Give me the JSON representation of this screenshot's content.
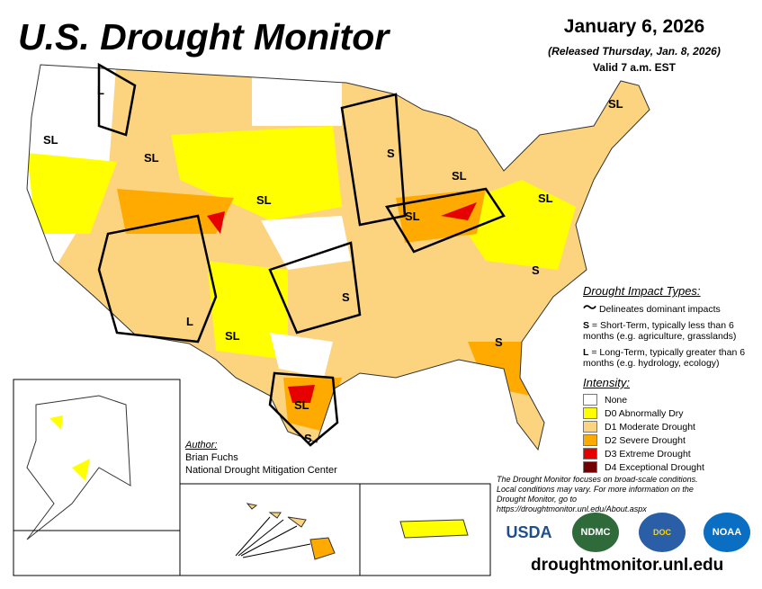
{
  "header": {
    "title": "U.S. Drought Monitor",
    "date": "January 6, 2026",
    "released": "(Released Thursday, Jan. 8, 2026)",
    "valid": "Valid 7 a.m. EST"
  },
  "map": {
    "labels": [
      "SL",
      "L",
      "SL",
      "SL",
      "S",
      "SL",
      "SL",
      "SL",
      "SL",
      "S",
      "L",
      "SL",
      "S",
      "S",
      "SL",
      "S",
      "SL"
    ]
  },
  "legend": {
    "impact_title": "Drought Impact Types:",
    "delineates": "Delineates dominant impacts",
    "short_term_key": "S",
    "short_term": " = Short-Term, typically less than 6 months (e.g. agriculture, grasslands)",
    "long_term_key": "L",
    "long_term": " = Long-Term, typically greater than 6 months (e.g. hydrology, ecology)",
    "intensity_title": "Intensity:",
    "categories": [
      {
        "label": "None",
        "color": "#FFFFFF"
      },
      {
        "label": "D0 Abnormally Dry",
        "color": "#FFFF00"
      },
      {
        "label": "D1 Moderate Drought",
        "color": "#FCD37F"
      },
      {
        "label": "D2 Severe Drought",
        "color": "#FFAA00"
      },
      {
        "label": "D3 Extreme Drought",
        "color": "#E60000"
      },
      {
        "label": "D4 Exceptional Drought",
        "color": "#730000"
      }
    ]
  },
  "author": {
    "heading": "Author:",
    "name": "Brian Fuchs",
    "org": "National Drought Mitigation Center"
  },
  "footer": {
    "note": "The Drought Monitor focuses on broad-scale conditions. Local conditions may vary. For more information on the Drought Monitor, go to https://droughtmonitor.unl.edu/About.aspx",
    "url": "droughtmonitor.unl.edu",
    "logos": [
      "USDA",
      "NDMC",
      "Dept. of Commerce",
      "NOAA"
    ]
  }
}
